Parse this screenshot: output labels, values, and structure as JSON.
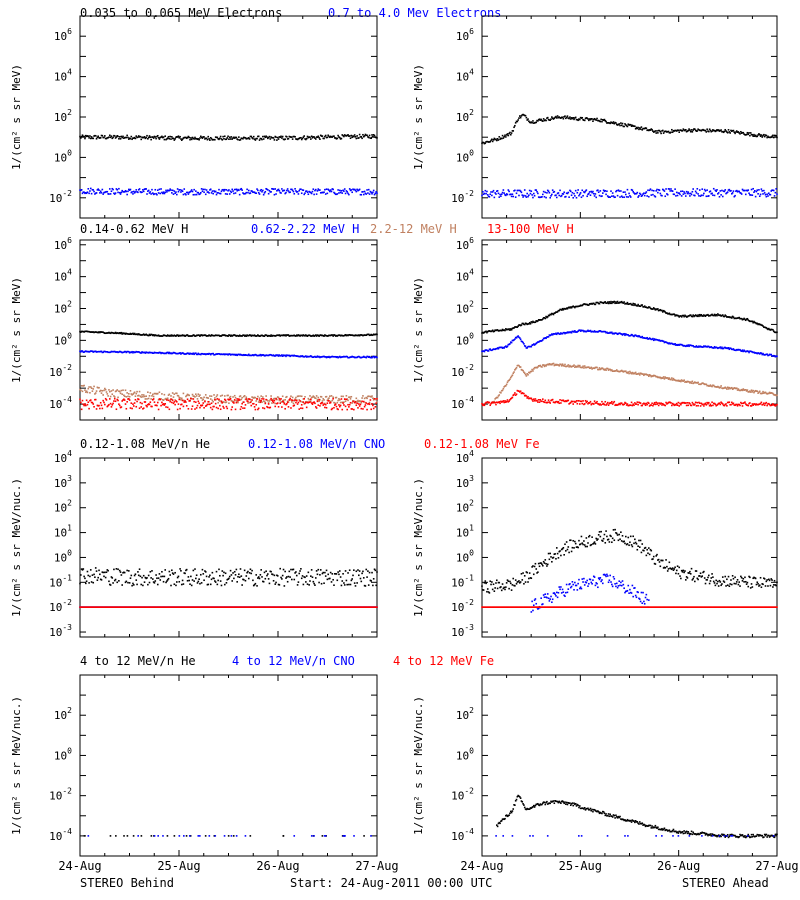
{
  "colors": {
    "black": "#000000",
    "blue": "#0000ff",
    "tan": "#c08060",
    "red": "#ff0000"
  },
  "footer": {
    "left": "STEREO Behind",
    "center": "Start: 24-Aug-2011 00:00 UTC",
    "right": "STEREO Ahead"
  },
  "xaxis": {
    "ticks": [
      "24-Aug",
      "25-Aug",
      "26-Aug",
      "27-Aug"
    ]
  },
  "chart_data": [
    {
      "type": "scatter",
      "row": 0,
      "ylabel": "1/(cm² s sr MeV)",
      "log_y": true,
      "yrange_exp": [
        -3,
        7
      ],
      "ytick_exp": [
        -2,
        0,
        2,
        4,
        6
      ],
      "titles": [
        {
          "text": "0.035 to 0.065 MeV Electrons",
          "color": "#000000"
        },
        {
          "text": "0.7 to 4.0 Mev Electrons",
          "color": "#0000ff"
        }
      ],
      "panels": [
        {
          "name": "STEREO Behind",
          "series": [
            {
              "color": "#000000",
              "x": [
                0,
                0.5,
                1,
                1.5,
                2,
                2.5,
                3
              ],
              "log10_y": [
                1.0,
                1.0,
                0.95,
                0.95,
                0.95,
                1.0,
                1.05
              ],
              "scatter": 0.1
            },
            {
              "color": "#0000ff",
              "x": [
                0,
                0.5,
                1,
                1.5,
                2,
                2.5,
                3
              ],
              "log10_y": [
                -1.65,
                -1.7,
                -1.7,
                -1.7,
                -1.7,
                -1.7,
                -1.7
              ],
              "scatter": 0.15
            }
          ]
        },
        {
          "name": "STEREO Ahead",
          "series": [
            {
              "color": "#000000",
              "x": [
                0,
                0.15,
                0.3,
                0.37,
                0.42,
                0.5,
                0.6,
                0.8,
                1.0,
                1.2,
                1.5,
                1.8,
                2.1,
                2.5,
                2.8,
                3.0
              ],
              "log10_y": [
                0.7,
                0.9,
                1.2,
                1.95,
                2.1,
                1.75,
                1.85,
                2.0,
                1.9,
                1.85,
                1.55,
                1.25,
                1.35,
                1.3,
                1.1,
                1.0
              ],
              "scatter": 0.08
            },
            {
              "color": "#0000ff",
              "x": [
                0,
                1,
                2,
                3
              ],
              "log10_y": [
                -1.8,
                -1.8,
                -1.75,
                -1.75
              ],
              "scatter": 0.2
            }
          ]
        }
      ]
    },
    {
      "type": "scatter",
      "row": 1,
      "ylabel": "1/(cm² s sr MeV)",
      "log_y": true,
      "yrange_exp": [
        -5,
        6.3
      ],
      "ytick_exp": [
        -4,
        -2,
        0,
        2,
        4,
        6
      ],
      "titles": [
        {
          "text": "0.14-0.62 MeV H",
          "color": "#000000"
        },
        {
          "text": "0.62-2.22 MeV H",
          "color": "#0000ff"
        },
        {
          "text": "2.2-12 MeV H",
          "color": "#c08060"
        },
        {
          "text": "13-100 MeV H",
          "color": "#ff0000"
        }
      ],
      "panels": [
        {
          "name": "STEREO Behind",
          "series": [
            {
              "color": "#000000",
              "x": [
                0,
                0.4,
                0.8,
                1.5,
                2.5,
                3.0
              ],
              "log10_y": [
                0.55,
                0.45,
                0.3,
                0.3,
                0.3,
                0.35
              ],
              "scatter": 0.04
            },
            {
              "color": "#0000ff",
              "x": [
                0,
                0.6,
                1.2,
                2.0,
                2.5,
                3.0
              ],
              "log10_y": [
                -0.7,
                -0.75,
                -0.85,
                -0.95,
                -1.05,
                -1.05
              ],
              "scatter": 0.04
            },
            {
              "color": "#c08060",
              "x": [
                0,
                0.3,
                0.8,
                1.5,
                2.0,
                3.0
              ],
              "log10_y": [
                -3.0,
                -3.3,
                -3.5,
                -3.7,
                -3.75,
                -3.7
              ],
              "scatter": 0.25
            },
            {
              "color": "#ff0000",
              "x": [
                0,
                1,
                2,
                3
              ],
              "log10_y": [
                -4.0,
                -4.0,
                -4.0,
                -4.0
              ],
              "scatter": 0.35
            }
          ]
        },
        {
          "name": "STEREO Ahead",
          "series": [
            {
              "color": "#000000",
              "x": [
                0,
                0.3,
                0.4,
                0.5,
                0.6,
                0.8,
                1.0,
                1.2,
                1.4,
                1.6,
                1.8,
                2.0,
                2.4,
                2.7,
                3.0
              ],
              "log10_y": [
                0.5,
                0.7,
                1.0,
                1.1,
                1.3,
                1.9,
                2.2,
                2.35,
                2.4,
                2.2,
                1.9,
                1.5,
                1.6,
                1.3,
                0.5
              ],
              "scatter": 0.06
            },
            {
              "color": "#0000ff",
              "x": [
                0,
                0.25,
                0.37,
                0.45,
                0.55,
                0.7,
                1.0,
                1.2,
                1.6,
                2.0,
                2.5,
                3.0
              ],
              "log10_y": [
                -0.7,
                -0.4,
                0.3,
                -0.5,
                -0.2,
                0.35,
                0.6,
                0.55,
                0.25,
                -0.3,
                -0.5,
                -1.0
              ],
              "scatter": 0.05
            },
            {
              "color": "#c08060",
              "x": [
                0.1,
                0.2,
                0.3,
                0.37,
                0.45,
                0.55,
                0.7,
                1.0,
                1.3,
                1.6,
                2.0,
                2.5,
                3.0
              ],
              "log10_y": [
                -4.0,
                -3.2,
                -2.3,
                -1.5,
                -2.2,
                -1.7,
                -1.5,
                -1.65,
                -1.85,
                -2.1,
                -2.5,
                -3.0,
                -3.4
              ],
              "scatter": 0.07
            },
            {
              "color": "#ff0000",
              "x": [
                0,
                0.2,
                0.3,
                0.37,
                0.45,
                0.6,
                1.0,
                1.5,
                2.0,
                3.0
              ],
              "log10_y": [
                -4.0,
                -3.9,
                -3.7,
                -3.1,
                -3.6,
                -3.8,
                -3.9,
                -4.0,
                -4.0,
                -4.0
              ],
              "scatter": 0.12
            }
          ]
        }
      ]
    },
    {
      "type": "scatter",
      "row": 2,
      "ylabel": "1/(cm² s sr MeV/nuc.)",
      "log_y": true,
      "yrange_exp": [
        -3.2,
        4
      ],
      "ytick_exp": [
        -3,
        -2,
        -1,
        0,
        1,
        2,
        3,
        4
      ],
      "titles": [
        {
          "text": "0.12-1.08 MeV/n He",
          "color": "#000000"
        },
        {
          "text": "0.12-1.08 MeV/n CNO",
          "color": "#0000ff"
        },
        {
          "text": "0.12-1.08 MeV Fe",
          "color": "#ff0000"
        }
      ],
      "panels": [
        {
          "name": "STEREO Behind",
          "series": [
            {
              "color": "#000000",
              "x": [
                0,
                0.5,
                1,
                1.5,
                2,
                2.5,
                3
              ],
              "log10_y": [
                -0.7,
                -0.8,
                -0.8,
                -0.8,
                -0.8,
                -0.8,
                -0.8
              ],
              "scatter": 0.35
            },
            {
              "color": "#0000ff",
              "x": [
                0,
                1,
                2,
                3
              ],
              "log10_y": [
                -2.0,
                -2.0,
                -2.0,
                -2.0
              ],
              "scatter": 0.0
            },
            {
              "color": "#ff0000",
              "x": [
                0,
                1,
                2,
                3
              ],
              "log10_y": [
                -2.0,
                -2.0,
                -2.0,
                -2.0
              ],
              "scatter": 0.0
            }
          ]
        },
        {
          "name": "STEREO Ahead",
          "series": [
            {
              "color": "#000000",
              "x": [
                0,
                0.3,
                0.45,
                0.6,
                0.8,
                1.0,
                1.2,
                1.4,
                1.6,
                1.8,
                2.0,
                2.4,
                3.0
              ],
              "log10_y": [
                -1.2,
                -1.1,
                -0.8,
                -0.3,
                0.3,
                0.6,
                0.8,
                0.9,
                0.5,
                -0.2,
                -0.6,
                -0.9,
                -1.1
              ],
              "scatter": 0.25
            },
            {
              "color": "#0000ff",
              "x": [
                0.5,
                0.7,
                0.9,
                1.1,
                1.3,
                1.5,
                1.7
              ],
              "log10_y": [
                -2.0,
                -1.6,
                -1.2,
                -1.0,
                -0.9,
                -1.3,
                -1.8
              ],
              "scatter": 0.25
            },
            {
              "color": "#ff0000",
              "x": [
                0,
                1,
                2,
                3
              ],
              "log10_y": [
                -2.0,
                -2.0,
                -2.0,
                -2.0
              ],
              "scatter": 0.0
            }
          ]
        }
      ]
    },
    {
      "type": "scatter",
      "row": 3,
      "ylabel": "1/(cm² s sr MeV/nuc.)",
      "log_y": true,
      "yrange_exp": [
        -5,
        4
      ],
      "ytick_exp": [
        -4,
        -2,
        0,
        2
      ],
      "titles": [
        {
          "text": "4 to 12 MeV/n He",
          "color": "#000000"
        },
        {
          "text": "4 to 12 MeV/n CNO",
          "color": "#0000ff"
        },
        {
          "text": "4 to 12 MeV Fe",
          "color": "#ff0000"
        }
      ],
      "panels": [
        {
          "name": "STEREO Behind",
          "series": [
            {
              "color": "#000000",
              "x": [
                0,
                1,
                2,
                3
              ],
              "log10_y": [
                -4.0,
                -4.0,
                -4.0,
                -4.0
              ],
              "scatter": 0.0,
              "sparse": true
            },
            {
              "color": "#0000ff",
              "x": [
                0,
                1,
                2,
                3
              ],
              "log10_y": [
                -4.0,
                -4.0,
                -4.0,
                -4.0
              ],
              "scatter": 0.0,
              "sparse": true
            }
          ]
        },
        {
          "name": "STEREO Ahead",
          "series": [
            {
              "color": "#000000",
              "x": [
                0.15,
                0.3,
                0.37,
                0.45,
                0.6,
                0.75,
                0.9,
                1.1,
                1.4,
                1.7,
                2.0,
                2.5,
                3.0
              ],
              "log10_y": [
                -3.5,
                -2.8,
                -2.0,
                -2.7,
                -2.4,
                -2.3,
                -2.4,
                -2.7,
                -3.1,
                -3.5,
                -3.8,
                -4.0,
                -4.0
              ],
              "scatter": 0.08
            },
            {
              "color": "#0000ff",
              "x": [
                0.1,
                0.8,
                1.5,
                3.0
              ],
              "log10_y": [
                -4.0,
                -4.0,
                -4.0,
                -4.0
              ],
              "scatter": 0.0,
              "sparse": true
            }
          ]
        }
      ]
    }
  ]
}
